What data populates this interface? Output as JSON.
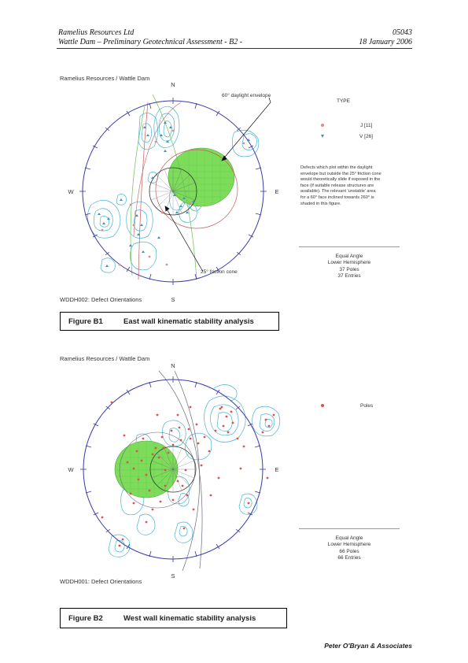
{
  "header": {
    "company": "Ramelius Resources Ltd",
    "project": "Wattle Dam – Preliminary Geotechnical Assessment  - B2 -",
    "doc_number": "05043",
    "date": "18 January 2006"
  },
  "figure1": {
    "plot_title": "Ramelius Resources / Wattle Dam",
    "compass": {
      "n": "N",
      "s": "S",
      "e": "E",
      "w": "W"
    },
    "annotation_daylight": "60° daylight envelope",
    "annotation_friction": "25° friction cone",
    "legend_heading": "TYPE",
    "legend_items": [
      {
        "label": "J [11]",
        "color": "#e58a8a"
      },
      {
        "label": "V [26]",
        "color": "#4a8ca8"
      }
    ],
    "note_lines": [
      "Defects which plot within the daylight",
      "envelope but outside the 25° friction cone",
      "would theoretically slide if exposed in the",
      "face (if suitable release structures are",
      "available).  The relevant 'unstable' area",
      "for a 60° face inclined towards 260° is",
      "shaded in this figure."
    ],
    "projection": [
      "Equal Angle",
      "Lower Hemisphere",
      "37 Poles",
      "37 Entries"
    ],
    "source_label": "WDDH002: Defect Orientations",
    "caption_number": "Figure B1",
    "caption_text": "East wall kinematic stability analysis"
  },
  "figure2": {
    "plot_title": "Ramelius Resources / Wattle Dam",
    "compass": {
      "n": "N",
      "s": "S",
      "e": "E",
      "w": "W"
    },
    "legend_items": [
      {
        "label": "Poles",
        "color": "#d9534f"
      }
    ],
    "projection": [
      "Equal Angle",
      "Lower Hemisphere",
      "66 Poles",
      "66 Entries"
    ],
    "source_label": "WDDH001: Defect Orientations",
    "caption_number": "Figure B2",
    "caption_text": "West wall kinematic stability analysis"
  },
  "footer": {
    "company": "Peter O'Bryan & Associates"
  },
  "colors": {
    "net_circle": "#3a3aa8",
    "envelope_fill": "#7ddc5a",
    "contour": "#4ab3d6",
    "great_circle_red": "#c65a5a",
    "great_circle_green": "#6fbf5a",
    "great_circle_grey": "#6a6a7a"
  }
}
